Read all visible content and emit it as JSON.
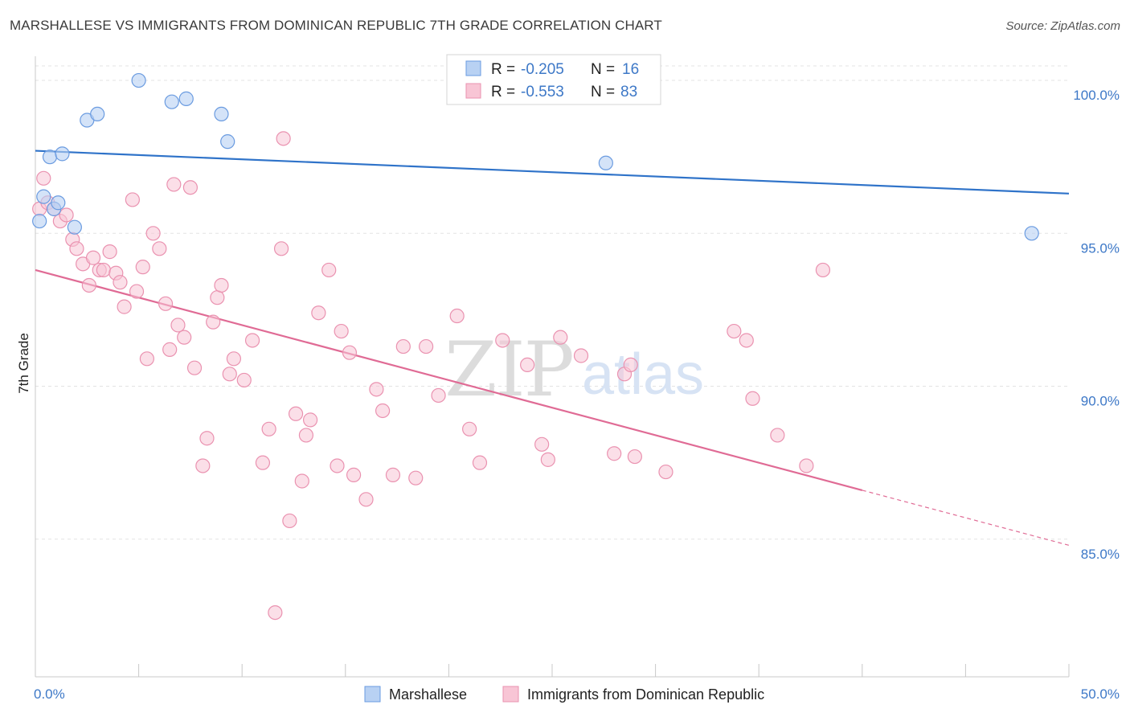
{
  "title": "MARSHALLESE VS IMMIGRANTS FROM DOMINICAN REPUBLIC 7TH GRADE CORRELATION CHART",
  "source": "Source: ZipAtlas.com",
  "watermark": {
    "zip": "ZIP",
    "atlas": "atlas"
  },
  "colors": {
    "blue_fill": "#b8d1f3",
    "blue_stroke": "#6a9be0",
    "blue_line": "#2f73c9",
    "pink_fill": "#f8c5d5",
    "pink_stroke": "#ea92b0",
    "pink_line": "#e06b95",
    "axis_text": "#3d78c7",
    "grid": "#e3e3e3"
  },
  "legend": {
    "rows": [
      {
        "r_label": "R =",
        "r_value": "-0.205",
        "n_label": "N =",
        "n_value": "16"
      },
      {
        "r_label": "R =",
        "r_value": "-0.553",
        "n_label": "N =",
        "n_value": "83"
      }
    ]
  },
  "chart_data": {
    "type": "scatter",
    "title": "MARSHALLESE VS IMMIGRANTS FROM DOMINICAN REPUBLIC 7TH GRADE CORRELATION CHART",
    "xlabel": "",
    "ylabel": "7th Grade",
    "xlim": [
      0,
      50
    ],
    "ylim": [
      80.5,
      101
    ],
    "x_tick_labels": [
      "0.0%",
      "50.0%"
    ],
    "y_ticks": [
      85,
      90,
      95,
      100
    ],
    "y_tick_labels": [
      "85.0%",
      "90.0%",
      "95.0%",
      "100.0%"
    ],
    "grid": true,
    "series": [
      {
        "name": "Marshallese",
        "color": "blue",
        "points": [
          [
            0.2,
            95.4
          ],
          [
            0.4,
            96.2
          ],
          [
            0.7,
            97.5
          ],
          [
            0.9,
            95.8
          ],
          [
            1.1,
            96.0
          ],
          [
            1.3,
            97.6
          ],
          [
            1.9,
            95.2
          ],
          [
            2.5,
            98.7
          ],
          [
            3.0,
            98.9
          ],
          [
            5.0,
            100.0
          ],
          [
            6.6,
            99.3
          ],
          [
            7.3,
            99.4
          ],
          [
            9.0,
            98.9
          ],
          [
            9.3,
            98.0
          ],
          [
            27.6,
            97.3
          ],
          [
            48.2,
            95.0
          ]
        ],
        "trend": {
          "x": [
            0,
            50
          ],
          "y": [
            97.7,
            96.3
          ]
        }
      },
      {
        "name": "Immigrants from Dominican Republic",
        "color": "pink",
        "points": [
          [
            0.2,
            95.8
          ],
          [
            0.4,
            96.8
          ],
          [
            0.6,
            96.0
          ],
          [
            0.9,
            95.8
          ],
          [
            1.2,
            95.4
          ],
          [
            1.5,
            95.6
          ],
          [
            1.8,
            94.8
          ],
          [
            2.0,
            94.5
          ],
          [
            2.3,
            94.0
          ],
          [
            2.6,
            93.3
          ],
          [
            2.8,
            94.2
          ],
          [
            3.1,
            93.8
          ],
          [
            3.3,
            93.8
          ],
          [
            3.6,
            94.4
          ],
          [
            3.9,
            93.7
          ],
          [
            4.1,
            93.4
          ],
          [
            4.3,
            92.6
          ],
          [
            4.7,
            96.1
          ],
          [
            4.9,
            93.1
          ],
          [
            5.2,
            93.9
          ],
          [
            5.4,
            90.9
          ],
          [
            5.7,
            95.0
          ],
          [
            6.0,
            94.5
          ],
          [
            6.3,
            92.7
          ],
          [
            6.5,
            91.2
          ],
          [
            6.7,
            96.6
          ],
          [
            6.9,
            92.0
          ],
          [
            7.2,
            91.6
          ],
          [
            7.5,
            96.5
          ],
          [
            7.7,
            90.6
          ],
          [
            8.1,
            87.4
          ],
          [
            8.3,
            88.3
          ],
          [
            8.6,
            92.1
          ],
          [
            8.8,
            92.9
          ],
          [
            9.0,
            93.3
          ],
          [
            9.4,
            90.4
          ],
          [
            9.6,
            90.9
          ],
          [
            10.1,
            90.2
          ],
          [
            10.5,
            91.5
          ],
          [
            11.0,
            87.5
          ],
          [
            11.3,
            88.6
          ],
          [
            11.6,
            82.6
          ],
          [
            11.9,
            94.5
          ],
          [
            12.0,
            98.1
          ],
          [
            12.3,
            85.6
          ],
          [
            12.6,
            89.1
          ],
          [
            12.9,
            86.9
          ],
          [
            13.1,
            88.4
          ],
          [
            13.3,
            88.9
          ],
          [
            13.7,
            92.4
          ],
          [
            14.2,
            93.8
          ],
          [
            14.6,
            87.4
          ],
          [
            14.8,
            91.8
          ],
          [
            15.2,
            91.1
          ],
          [
            15.4,
            87.1
          ],
          [
            16.0,
            86.3
          ],
          [
            16.5,
            89.9
          ],
          [
            16.8,
            89.2
          ],
          [
            17.3,
            87.1
          ],
          [
            17.8,
            91.3
          ],
          [
            18.4,
            87.0
          ],
          [
            18.9,
            91.3
          ],
          [
            19.5,
            89.7
          ],
          [
            20.4,
            92.3
          ],
          [
            21.0,
            88.6
          ],
          [
            21.5,
            87.5
          ],
          [
            22.6,
            91.5
          ],
          [
            23.8,
            90.7
          ],
          [
            24.5,
            88.1
          ],
          [
            24.8,
            87.6
          ],
          [
            25.4,
            91.6
          ],
          [
            26.4,
            91.0
          ],
          [
            28.0,
            87.8
          ],
          [
            28.5,
            90.4
          ],
          [
            28.8,
            90.7
          ],
          [
            29.0,
            87.7
          ],
          [
            30.5,
            87.2
          ],
          [
            33.8,
            91.8
          ],
          [
            34.4,
            91.5
          ],
          [
            34.7,
            89.6
          ],
          [
            35.9,
            88.4
          ],
          [
            37.3,
            87.4
          ],
          [
            38.1,
            93.8
          ]
        ],
        "trend": {
          "x": [
            0,
            40
          ],
          "y": [
            93.8,
            86.6
          ]
        },
        "trend_dashed": {
          "x": [
            40,
            50
          ],
          "y": [
            86.6,
            84.8
          ]
        }
      }
    ]
  }
}
